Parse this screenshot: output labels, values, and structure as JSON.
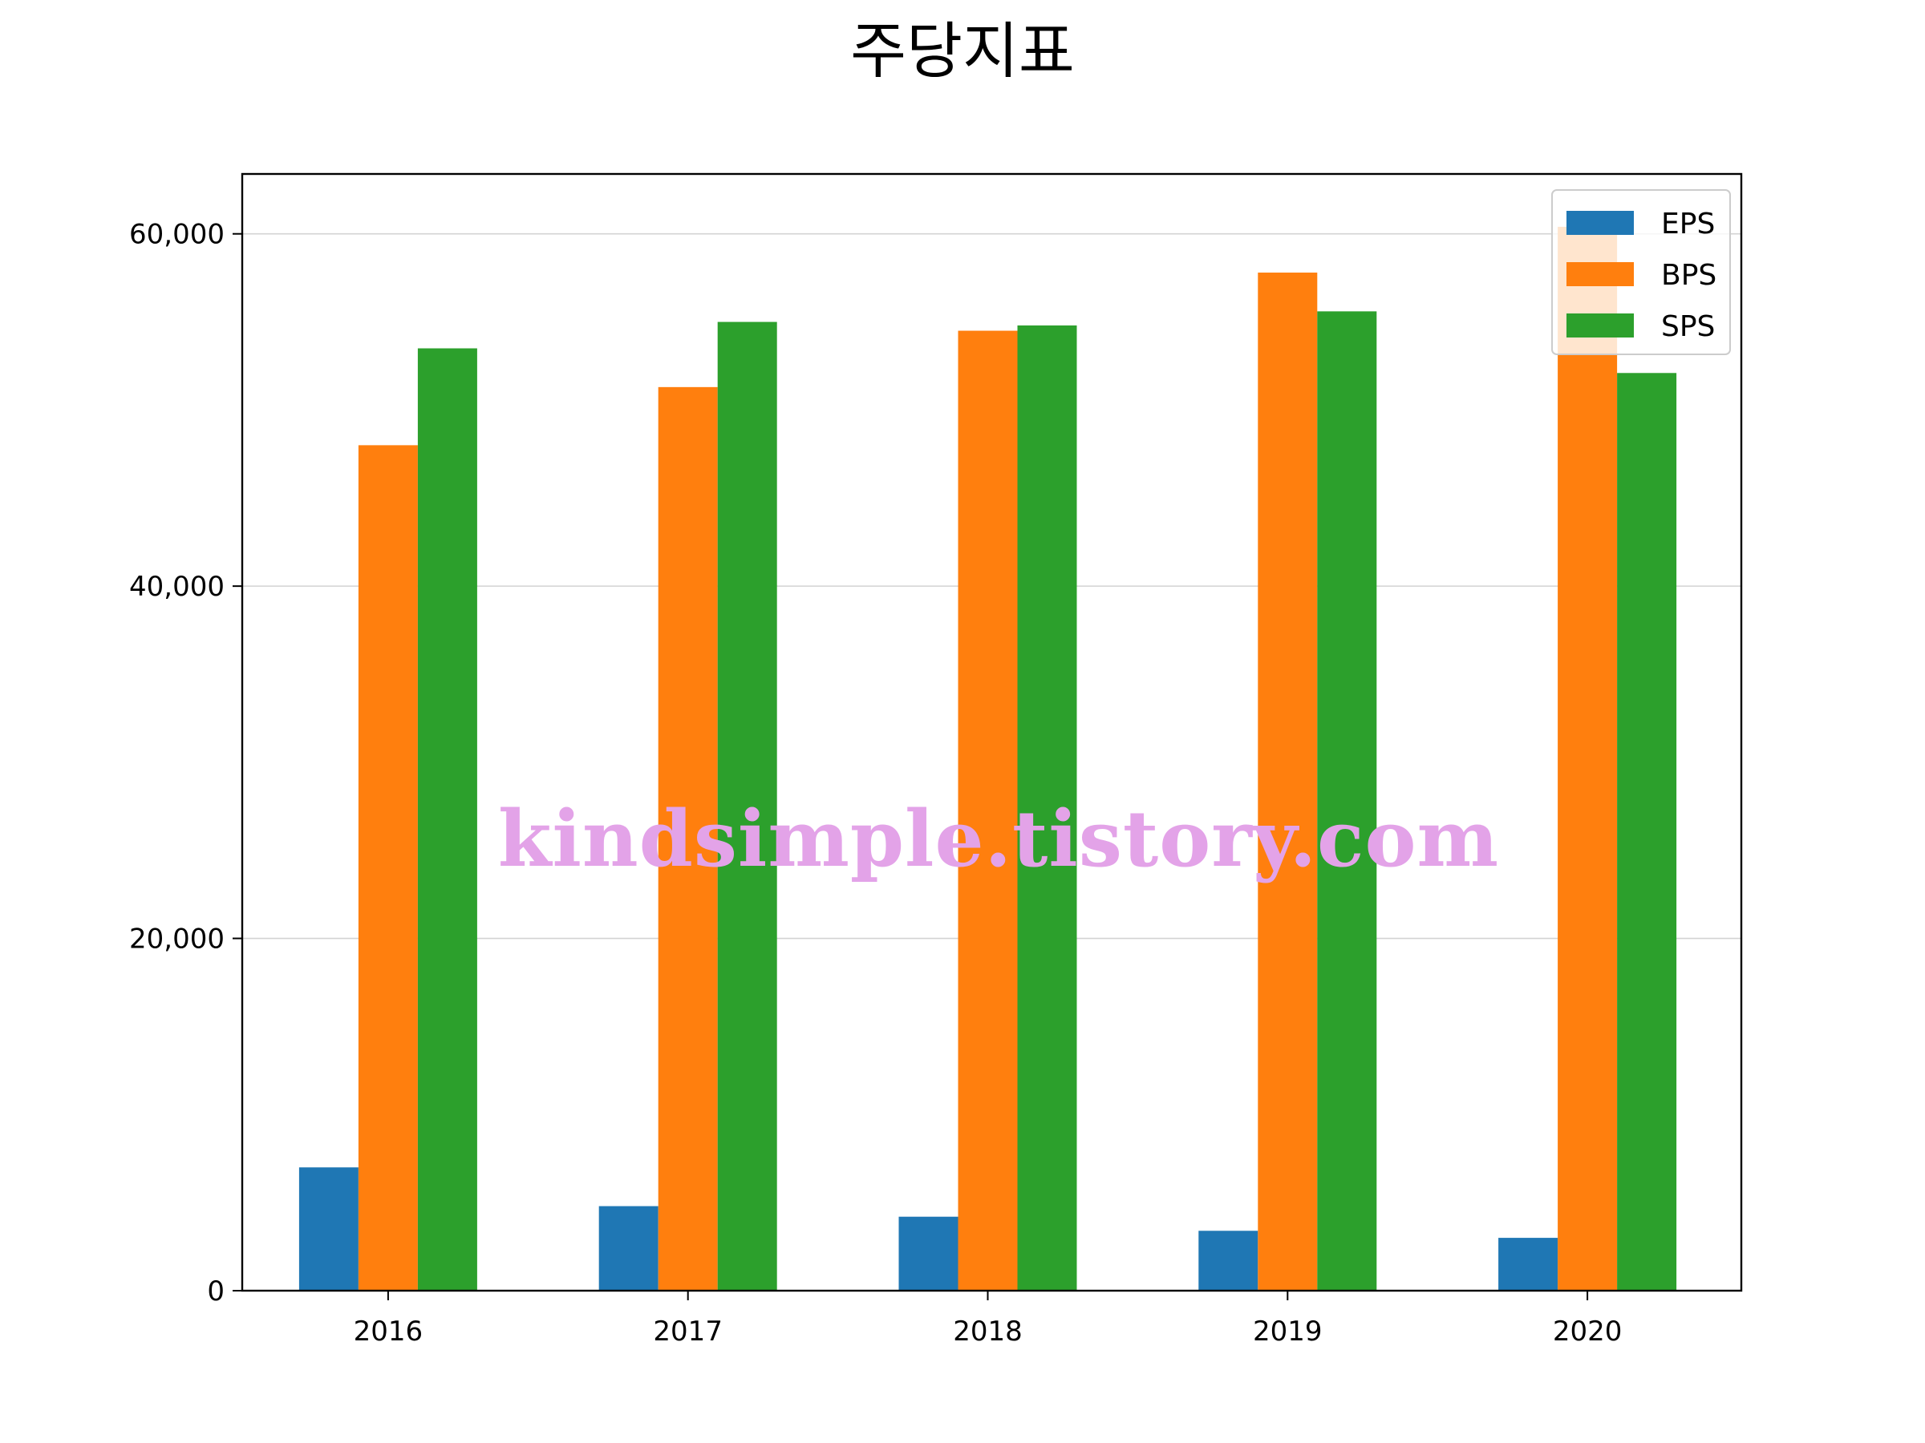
{
  "chart_data": {
    "type": "bar",
    "title": "주당지표",
    "xlabel": "",
    "ylabel": "",
    "categories": [
      "2016",
      "2017",
      "2018",
      "2019",
      "2020"
    ],
    "series": [
      {
        "name": "EPS",
        "color": "#1f77b4",
        "values": [
          7000,
          4800,
          4200,
          3400,
          3000
        ]
      },
      {
        "name": "BPS",
        "color": "#ff7f0e",
        "values": [
          48000,
          51300,
          54500,
          57800,
          60400
        ]
      },
      {
        "name": "SPS",
        "color": "#2ca02c",
        "values": [
          53500,
          55000,
          54800,
          55600,
          52100
        ]
      }
    ],
    "ylim": [
      0,
      63400
    ],
    "yticks": [
      {
        "value": 0,
        "label": "0"
      },
      {
        "value": 20000,
        "label": "20,000"
      },
      {
        "value": 40000,
        "label": "40,000"
      },
      {
        "value": 60000,
        "label": "60,000"
      }
    ],
    "grid": {
      "y": true,
      "x": false,
      "color": "#d3d3d3"
    },
    "legend": {
      "placement": "top-right"
    }
  },
  "watermark": "kindsimple.tistory.com"
}
